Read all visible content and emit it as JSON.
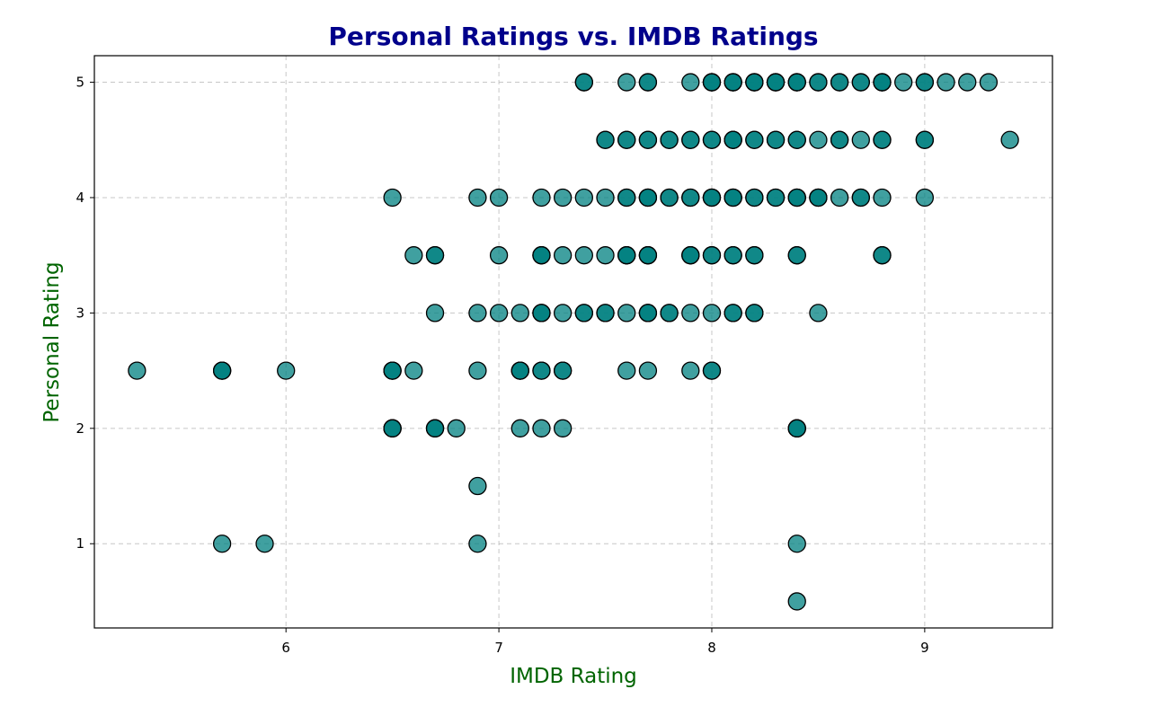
{
  "chart_data": {
    "type": "scatter",
    "title": "Personal Ratings vs. IMDB Ratings",
    "xlabel": "IMDB Rating",
    "ylabel": "Personal Rating",
    "xlim": [
      5.1,
      9.6
    ],
    "ylim": [
      0.27,
      5.23
    ],
    "xticks": [
      6,
      7,
      8,
      9
    ],
    "yticks": [
      1,
      2,
      3,
      4,
      5
    ],
    "grid": true,
    "colors": {
      "point_fill": "#008080",
      "point_alpha": 0.75,
      "point_edge": "#000000",
      "title": "#00008B",
      "axis_label": "#006400"
    },
    "series": [
      {
        "points": [
          [
            7.4,
            5
          ],
          [
            7.4,
            5
          ],
          [
            7.6,
            5
          ],
          [
            7.7,
            5
          ],
          [
            7.7,
            5
          ],
          [
            7.9,
            5
          ],
          [
            8.0,
            5
          ],
          [
            8.0,
            5
          ],
          [
            8.0,
            5
          ],
          [
            8.1,
            5
          ],
          [
            8.1,
            5
          ],
          [
            8.1,
            5
          ],
          [
            8.2,
            5
          ],
          [
            8.2,
            5
          ],
          [
            8.2,
            5
          ],
          [
            8.3,
            5
          ],
          [
            8.3,
            5
          ],
          [
            8.3,
            5
          ],
          [
            8.4,
            5
          ],
          [
            8.4,
            5
          ],
          [
            8.4,
            5
          ],
          [
            8.5,
            5
          ],
          [
            8.5,
            5
          ],
          [
            8.6,
            5
          ],
          [
            8.6,
            5
          ],
          [
            8.7,
            5
          ],
          [
            8.7,
            5
          ],
          [
            8.8,
            5
          ],
          [
            8.8,
            5
          ],
          [
            8.8,
            5
          ],
          [
            8.9,
            5
          ],
          [
            9.0,
            5
          ],
          [
            9.0,
            5
          ],
          [
            9.1,
            5
          ],
          [
            9.2,
            5
          ],
          [
            9.3,
            5
          ],
          [
            7.5,
            4.5
          ],
          [
            7.5,
            4.5
          ],
          [
            7.6,
            4.5
          ],
          [
            7.6,
            4.5
          ],
          [
            7.7,
            4.5
          ],
          [
            7.7,
            4.5
          ],
          [
            7.8,
            4.5
          ],
          [
            7.8,
            4.5
          ],
          [
            7.9,
            4.5
          ],
          [
            7.9,
            4.5
          ],
          [
            8.0,
            4.5
          ],
          [
            8.0,
            4.5
          ],
          [
            8.1,
            4.5
          ],
          [
            8.1,
            4.5
          ],
          [
            8.1,
            4.5
          ],
          [
            8.2,
            4.5
          ],
          [
            8.2,
            4.5
          ],
          [
            8.3,
            4.5
          ],
          [
            8.3,
            4.5
          ],
          [
            8.4,
            4.5
          ],
          [
            8.4,
            4.5
          ],
          [
            8.5,
            4.5
          ],
          [
            8.6,
            4.5
          ],
          [
            8.6,
            4.5
          ],
          [
            8.7,
            4.5
          ],
          [
            8.8,
            4.5
          ],
          [
            8.8,
            4.5
          ],
          [
            9.0,
            4.5
          ],
          [
            9.0,
            4.5
          ],
          [
            9.4,
            4.5
          ],
          [
            6.5,
            4
          ],
          [
            6.9,
            4
          ],
          [
            7.0,
            4
          ],
          [
            7.2,
            4
          ],
          [
            7.3,
            4
          ],
          [
            7.4,
            4
          ],
          [
            7.5,
            4
          ],
          [
            7.6,
            4
          ],
          [
            7.6,
            4
          ],
          [
            7.7,
            4
          ],
          [
            7.7,
            4
          ],
          [
            7.7,
            4
          ],
          [
            7.8,
            4
          ],
          [
            7.8,
            4
          ],
          [
            7.9,
            4
          ],
          [
            7.9,
            4
          ],
          [
            8.0,
            4
          ],
          [
            8.0,
            4
          ],
          [
            8.0,
            4
          ],
          [
            8.1,
            4
          ],
          [
            8.1,
            4
          ],
          [
            8.1,
            4
          ],
          [
            8.2,
            4
          ],
          [
            8.2,
            4
          ],
          [
            8.3,
            4
          ],
          [
            8.3,
            4
          ],
          [
            8.4,
            4
          ],
          [
            8.4,
            4
          ],
          [
            8.4,
            4
          ],
          [
            8.5,
            4
          ],
          [
            8.5,
            4
          ],
          [
            8.5,
            4
          ],
          [
            8.6,
            4
          ],
          [
            8.7,
            4
          ],
          [
            8.7,
            4
          ],
          [
            8.8,
            4
          ],
          [
            9.0,
            4
          ],
          [
            6.6,
            3.5
          ],
          [
            6.7,
            3.5
          ],
          [
            6.7,
            3.5
          ],
          [
            7.0,
            3.5
          ],
          [
            7.2,
            3.5
          ],
          [
            7.2,
            3.5
          ],
          [
            7.2,
            3.5
          ],
          [
            7.3,
            3.5
          ],
          [
            7.4,
            3.5
          ],
          [
            7.5,
            3.5
          ],
          [
            7.6,
            3.5
          ],
          [
            7.6,
            3.5
          ],
          [
            7.6,
            3.5
          ],
          [
            7.7,
            3.5
          ],
          [
            7.7,
            3.5
          ],
          [
            7.7,
            3.5
          ],
          [
            7.9,
            3.5
          ],
          [
            7.9,
            3.5
          ],
          [
            7.9,
            3.5
          ],
          [
            8.0,
            3.5
          ],
          [
            8.0,
            3.5
          ],
          [
            8.1,
            3.5
          ],
          [
            8.1,
            3.5
          ],
          [
            8.2,
            3.5
          ],
          [
            8.2,
            3.5
          ],
          [
            8.4,
            3.5
          ],
          [
            8.4,
            3.5
          ],
          [
            8.8,
            3.5
          ],
          [
            8.8,
            3.5
          ],
          [
            6.7,
            3
          ],
          [
            6.9,
            3
          ],
          [
            7.0,
            3
          ],
          [
            7.1,
            3
          ],
          [
            7.2,
            3
          ],
          [
            7.2,
            3
          ],
          [
            7.2,
            3
          ],
          [
            7.3,
            3
          ],
          [
            7.4,
            3
          ],
          [
            7.4,
            3
          ],
          [
            7.5,
            3
          ],
          [
            7.5,
            3
          ],
          [
            7.6,
            3
          ],
          [
            7.7,
            3
          ],
          [
            7.7,
            3
          ],
          [
            7.7,
            3
          ],
          [
            7.8,
            3
          ],
          [
            7.8,
            3
          ],
          [
            7.9,
            3
          ],
          [
            8.0,
            3
          ],
          [
            8.1,
            3
          ],
          [
            8.1,
            3
          ],
          [
            8.2,
            3
          ],
          [
            8.2,
            3
          ],
          [
            8.5,
            3
          ],
          [
            5.3,
            2.5
          ],
          [
            5.7,
            2.5
          ],
          [
            5.7,
            2.5
          ],
          [
            5.7,
            2.5
          ],
          [
            6.0,
            2.5
          ],
          [
            6.5,
            2.5
          ],
          [
            6.5,
            2.5
          ],
          [
            6.5,
            2.5
          ],
          [
            6.6,
            2.5
          ],
          [
            6.9,
            2.5
          ],
          [
            7.1,
            2.5
          ],
          [
            7.1,
            2.5
          ],
          [
            7.1,
            2.5
          ],
          [
            7.2,
            2.5
          ],
          [
            7.2,
            2.5
          ],
          [
            7.3,
            2.5
          ],
          [
            7.3,
            2.5
          ],
          [
            7.6,
            2.5
          ],
          [
            7.7,
            2.5
          ],
          [
            7.9,
            2.5
          ],
          [
            8.0,
            2.5
          ],
          [
            8.0,
            2.5
          ],
          [
            6.5,
            2
          ],
          [
            6.5,
            2
          ],
          [
            6.5,
            2
          ],
          [
            6.7,
            2
          ],
          [
            6.7,
            2
          ],
          [
            6.7,
            2
          ],
          [
            6.8,
            2
          ],
          [
            7.1,
            2
          ],
          [
            7.2,
            2
          ],
          [
            7.3,
            2
          ],
          [
            8.4,
            2
          ],
          [
            8.4,
            2
          ],
          [
            8.4,
            2
          ],
          [
            6.9,
            1.5
          ],
          [
            5.7,
            1
          ],
          [
            5.9,
            1
          ],
          [
            6.9,
            1
          ],
          [
            8.4,
            1
          ],
          [
            8.4,
            0.5
          ]
        ]
      }
    ]
  }
}
